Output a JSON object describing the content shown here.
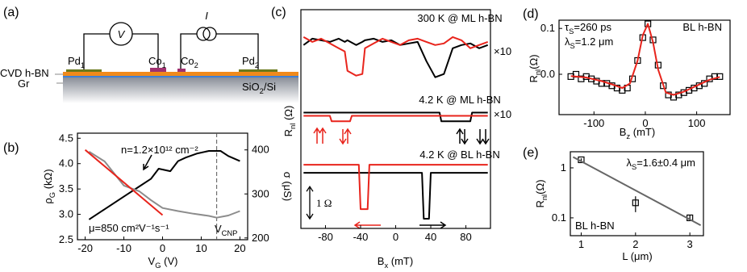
{
  "panel_labels": [
    "(a)",
    "(b)",
    "(c)",
    "(d)",
    "(e)"
  ],
  "schematic": {
    "voltmeter": "V",
    "current_source": "I",
    "contacts": [
      [
        "Pd",
        "1"
      ],
      [
        "Co",
        "1"
      ],
      [
        "Co",
        "2"
      ],
      [
        "Pd",
        "2"
      ]
    ],
    "layers": [
      "CVD h-BN",
      "Gr",
      [
        "SiO",
        "2",
        "/Si"
      ]
    ]
  },
  "chart_data": [
    {
      "type": "line",
      "xlabel": [
        "V",
        "G",
        " (V)"
      ],
      "ylabel": [
        "ρ",
        "G",
        " (kΩ)"
      ],
      "y2label": "σ (μS)",
      "xlim": [
        -22,
        22
      ],
      "xticks": [
        -20,
        -10,
        0,
        10,
        20
      ],
      "ylim": [
        2.5,
        4.6
      ],
      "yticks": [
        2.5,
        {
          "value": 3,
          "label": "3.0"
        },
        3.5,
        {
          "value": 4,
          "label": "4.0"
        },
        4.5
      ],
      "y2lim": [
        196,
        438
      ],
      "y2ticks": [
        200,
        300,
        400
      ],
      "cnp": 14,
      "annotations": [
        "n=1.2×10¹² cm⁻²",
        "μ=850 cm²V⁻¹s⁻¹",
        [
          "V",
          "CNP"
        ]
      ],
      "series": [
        {
          "color": "#000000",
          "x": [
            -19,
            -15,
            -10,
            -6,
            -3,
            -1,
            2,
            4,
            6,
            9,
            12,
            15,
            17,
            20
          ],
          "values": [
            2.9,
            3.1,
            3.35,
            3.55,
            3.7,
            3.9,
            3.85,
            4.05,
            4.12,
            4.2,
            4.25,
            4.25,
            4.15,
            4.05
          ]
        },
        {
          "color": "#8c8c8c",
          "axis": "y2",
          "x": [
            -19,
            -15,
            -10,
            -6,
            -3,
            0,
            4,
            8,
            12,
            14,
            17,
            20
          ],
          "values": [
            396,
            374,
            319,
            306,
            286,
            268,
            261,
            255,
            250,
            246,
            251,
            261
          ]
        },
        {
          "color": "#e8241c",
          "axis": "y2",
          "x": [
            -20,
            0
          ],
          "values": [
            400,
            252
          ]
        }
      ]
    },
    {
      "type": "line",
      "xlabel": [
        "B",
        "x",
        " (mT)"
      ],
      "ylabel": [
        "R",
        "nl",
        " (Ω)"
      ],
      "xlim": [
        -108,
        108
      ],
      "xticks": [
        -80,
        -40,
        0,
        40,
        80
      ],
      "ylim": [
        0,
        6.8
      ],
      "scale_bar": {
        "value": 1,
        "label": "1 Ω"
      },
      "annotations": [
        "300 K @ ML h-BN",
        "×10",
        "4.2 K @ ML h-BN",
        "×10",
        "4.2 K @ BL h-BN"
      ],
      "series": [
        {
          "color": "#000000",
          "x": [
            -105,
            -95,
            -85,
            -75,
            -65,
            -58,
            -55,
            -45,
            -38,
            -35,
            -25,
            -15,
            -5,
            5,
            15,
            25,
            35,
            45,
            55,
            65,
            75,
            85,
            95,
            105
          ],
          "values": [
            5.7,
            5.9,
            5.85,
            5.8,
            5.9,
            5.8,
            5.85,
            5.7,
            5.8,
            5.85,
            5.9,
            5.8,
            5.85,
            5.7,
            5.75,
            5.8,
            5.2,
            4.7,
            4.8,
            5.6,
            5.7,
            5.75,
            5.6,
            5.7
          ]
        },
        {
          "color": "#e8241c",
          "x": [
            -105,
            -95,
            -85,
            -75,
            -65,
            -58,
            -55,
            -45,
            -38,
            -35,
            -25,
            -15,
            -5,
            5,
            15,
            25,
            35,
            45,
            55,
            65,
            75,
            85,
            95,
            105
          ],
          "values": [
            5.95,
            5.8,
            5.9,
            5.75,
            5.6,
            5.5,
            4.9,
            4.75,
            4.8,
            5.6,
            5.75,
            5.9,
            5.8,
            5.7,
            5.85,
            5.9,
            5.8,
            5.7,
            5.75,
            5.95,
            5.85,
            5.6,
            5.7,
            5.8
          ]
        },
        {
          "color": "#000000",
          "x": [
            -105,
            -60,
            -20,
            20,
            50,
            52,
            85,
            87,
            105
          ],
          "values": [
            3.6,
            3.6,
            3.6,
            3.6,
            3.6,
            3.33,
            3.33,
            3.6,
            3.6
          ]
        },
        {
          "color": "#e8241c",
          "x": [
            -105,
            -75,
            -73,
            -52,
            -50,
            105
          ],
          "values": [
            3.5,
            3.5,
            3.33,
            3.33,
            3.5,
            3.5
          ]
        },
        {
          "color": "#000000",
          "x": [
            -105,
            0,
            30,
            32,
            38,
            40,
            105
          ],
          "values": [
            1.73,
            1.73,
            1.73,
            0.3,
            0.3,
            1.73,
            1.73
          ]
        },
        {
          "color": "#e8241c",
          "x": [
            -105,
            -42,
            -40,
            -32,
            -30,
            0,
            105
          ],
          "values": [
            1.98,
            1.98,
            0.6,
            0.6,
            1.98,
            1.98,
            1.98
          ]
        }
      ]
    },
    {
      "type": "scatter",
      "xlabel": [
        "B",
        "z",
        " (mT)"
      ],
      "ylabel": [
        "R",
        "nl",
        "(Ω)"
      ],
      "xlim": [
        -168,
        165
      ],
      "xticks": [
        -100,
        0,
        100
      ],
      "ylim": [
        -0.088,
        0.118
      ],
      "yticks": [
        {
          "value": 0,
          "label": "0.0"
        },
        0.1
      ],
      "annotations": [
        [
          "τ",
          "S",
          "=260 ps"
        ],
        [
          "λ",
          "S",
          "=1.2 μm"
        ],
        "BL h-BN"
      ],
      "series": [
        {
          "color": "#000000",
          "marker": "square",
          "x": [
            -145,
            -135,
            -125,
            -115,
            -105,
            -95,
            -85,
            -75,
            -65,
            -55,
            -45,
            -35,
            -25,
            -15,
            -5,
            5,
            15,
            25,
            35,
            45,
            55,
            65,
            75,
            85,
            95,
            105,
            115,
            125,
            135,
            145
          ],
          "values": [
            -0.005,
            0.0,
            -0.01,
            -0.005,
            -0.01,
            -0.015,
            -0.02,
            -0.02,
            -0.025,
            -0.03,
            -0.035,
            -0.03,
            -0.01,
            0.03,
            0.08,
            0.11,
            0.075,
            0.02,
            -0.025,
            -0.045,
            -0.05,
            -0.045,
            -0.04,
            -0.035,
            -0.03,
            -0.025,
            -0.02,
            -0.01,
            -0.005,
            -0.005
          ]
        },
        {
          "color": "#e8241c",
          "x": [
            -145,
            -115,
            -85,
            -65,
            -45,
            -30,
            -15,
            -5,
            5,
            15,
            25,
            40,
            55,
            75,
            100,
            125,
            145
          ],
          "values": [
            -0.004,
            -0.007,
            -0.015,
            -0.022,
            -0.03,
            -0.02,
            0.03,
            0.085,
            0.11,
            0.07,
            0.01,
            -0.04,
            -0.045,
            -0.038,
            -0.025,
            -0.012,
            -0.006
          ]
        }
      ]
    },
    {
      "type": "scatter",
      "xlabel": "L (μm)",
      "ylabel": [
        "R",
        "nl",
        "(Ω)"
      ],
      "log_y": true,
      "xlim": [
        0.8,
        3.25
      ],
      "xticks": [
        1,
        2,
        3
      ],
      "ylim": [
        0.044,
        2.1
      ],
      "yticks": [
        0.1,
        1
      ],
      "annotations": [
        [
          "λ",
          "S",
          "=1.6±0.4 μm"
        ],
        "BL h-BN"
      ],
      "series": [
        {
          "color": "#000000",
          "marker": "square",
          "x": [
            1,
            2,
            3
          ],
          "values": [
            1.45,
            0.2,
            0.1
          ],
          "errors": [
            0.1,
            0.07,
            0.012
          ]
        },
        {
          "color": "#666666",
          "x": [
            0.85,
            3.2
          ],
          "values": [
            1.65,
            0.071
          ]
        }
      ]
    }
  ]
}
